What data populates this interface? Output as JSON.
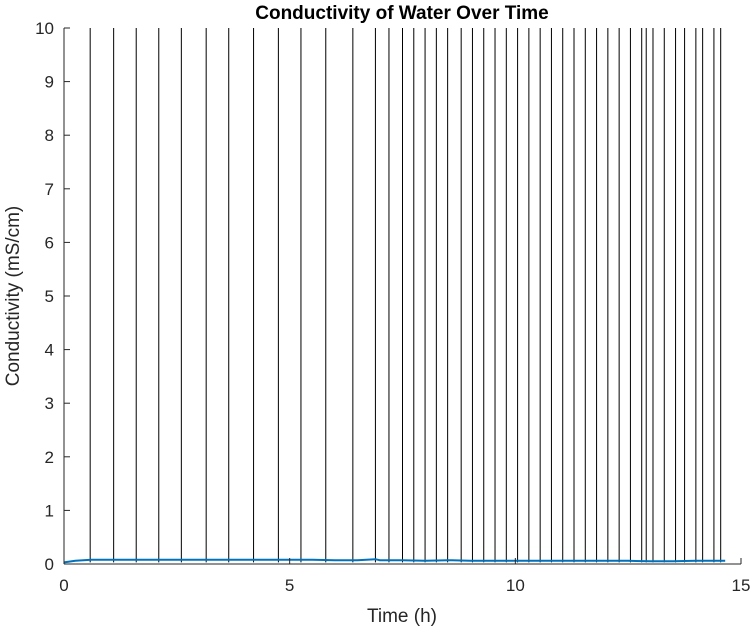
{
  "chart_data": {
    "type": "line",
    "title": "Conductivity of Water Over Time",
    "xlabel": "Time (h)",
    "ylabel": "Conductivity (mS/cm)",
    "xlim": [
      0,
      15
    ],
    "ylim": [
      0,
      10
    ],
    "xticks": [
      0,
      5,
      10,
      15
    ],
    "yticks": [
      0,
      1,
      2,
      3,
      4,
      5,
      6,
      7,
      8,
      9,
      10
    ],
    "grid": false,
    "line_color": "#0072BD",
    "spike_color": "#000000",
    "series": [
      {
        "x": [
          0,
          0.25,
          0.6,
          1.0,
          1.5,
          2.0,
          2.5,
          3.0,
          3.5,
          4.0,
          4.5,
          5.0,
          5.5,
          6.0,
          6.5,
          6.9,
          7.0,
          7.5,
          8.0,
          8.5,
          8.6,
          9.0,
          9.5,
          10.0,
          10.5,
          11.0,
          11.5,
          12.0,
          12.5,
          13.0,
          13.5,
          14.0,
          14.65
        ],
        "y": [
          0.03,
          0.06,
          0.08,
          0.08,
          0.08,
          0.08,
          0.08,
          0.08,
          0.08,
          0.08,
          0.08,
          0.08,
          0.08,
          0.07,
          0.07,
          0.09,
          0.07,
          0.07,
          0.06,
          0.07,
          0.07,
          0.06,
          0.06,
          0.06,
          0.06,
          0.06,
          0.06,
          0.06,
          0.06,
          0.05,
          0.05,
          0.06,
          0.06
        ]
      }
    ],
    "spikes_x": [
      0.58,
      1.1,
      1.6,
      2.1,
      2.6,
      3.15,
      3.65,
      4.2,
      4.75,
      5.25,
      5.8,
      6.4,
      6.9,
      7.2,
      7.5,
      7.75,
      8.0,
      8.25,
      8.5,
      8.8,
      9.05,
      9.3,
      9.55,
      9.8,
      10.05,
      10.3,
      10.55,
      10.8,
      11.05,
      11.3,
      11.55,
      11.8,
      12.05,
      12.3,
      12.55,
      12.8,
      12.9,
      13.05,
      13.3,
      13.55,
      13.75,
      14.0,
      14.15,
      14.4,
      14.55
    ]
  }
}
